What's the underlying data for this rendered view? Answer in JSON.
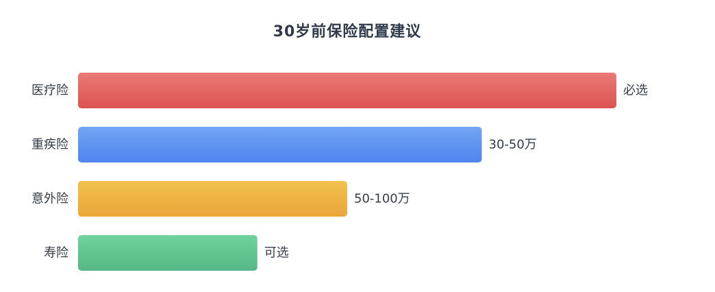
{
  "chart_data": {
    "type": "bar",
    "orientation": "horizontal",
    "title": "30岁前保险配置建议",
    "categories": [
      "医疗险",
      "重疾险",
      "意外险",
      "寿险"
    ],
    "values": [
      100,
      75,
      50,
      33.3
    ],
    "data_labels": [
      "必选",
      "30-50万",
      "50-100万",
      "可选"
    ],
    "xlim": [
      0,
      100
    ],
    "grid": false,
    "legend": "none",
    "colors": [
      [
        "#e97a76",
        "#dc5450"
      ],
      [
        "#72a5f4",
        "#4f84ef"
      ],
      [
        "#f2c24e",
        "#eaa63a"
      ],
      [
        "#6fd39c",
        "#55b886"
      ]
    ]
  }
}
